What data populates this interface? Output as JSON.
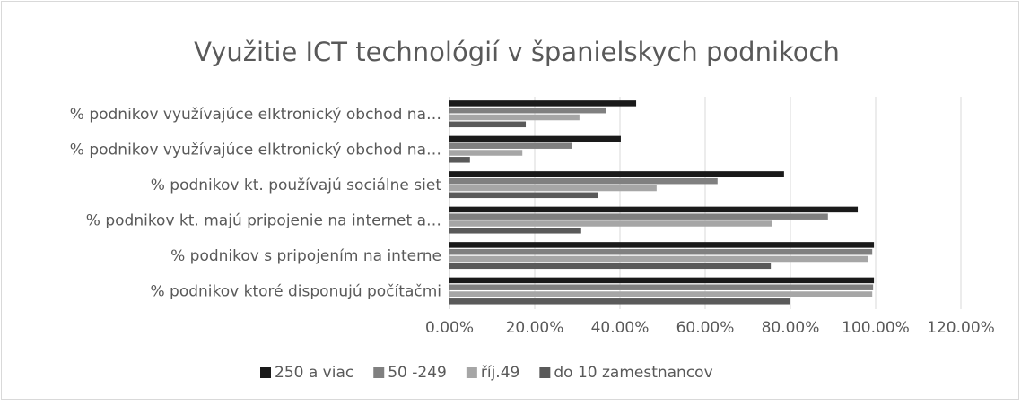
{
  "chart_data": {
    "type": "hbar",
    "title": "Využitie ICT technológií v španielskych podnikoch",
    "categories": [
      "% podnikov využívajúce elktronický obchod na…",
      "% podnikov využívajúce elktronický obchod na…",
      "% podnikov kt. používajú  sociálne siet",
      "% podnikov kt. majú pripojenie na internet a…",
      "% podnikov s pripojením na interne",
      "% podnikov ktoré disponujú počítačmi"
    ],
    "series": [
      {
        "name": "250 a viac",
        "color": "#1a1a1a",
        "values": [
          43.8,
          40.2,
          78.5,
          95.8,
          99.6,
          99.6
        ]
      },
      {
        "name": "50 -249",
        "color": "#808080",
        "values": [
          36.8,
          28.8,
          62.9,
          88.8,
          99.2,
          99.4
        ]
      },
      {
        "name": "říj.49",
        "color": "#a6a6a6",
        "values": [
          30.5,
          17.1,
          48.6,
          75.6,
          98.3,
          99.2
        ]
      },
      {
        "name": "do 10 zamestnancov",
        "color": "#5a5a5a",
        "values": [
          17.9,
          4.8,
          34.9,
          30.9,
          75.4,
          79.8
        ]
      }
    ],
    "xlim": [
      0,
      120
    ],
    "xticks": [
      {
        "value": 0,
        "label": "0.00%"
      },
      {
        "value": 20,
        "label": "20.00%"
      },
      {
        "value": 40,
        "label": "40.00%"
      },
      {
        "value": 60,
        "label": "60.00%"
      },
      {
        "value": 80,
        "label": "80.00%"
      },
      {
        "value": 100,
        "label": "100.00%"
      },
      {
        "value": 120,
        "label": "120.00%"
      }
    ],
    "grid": true,
    "legend": "bottom"
  }
}
